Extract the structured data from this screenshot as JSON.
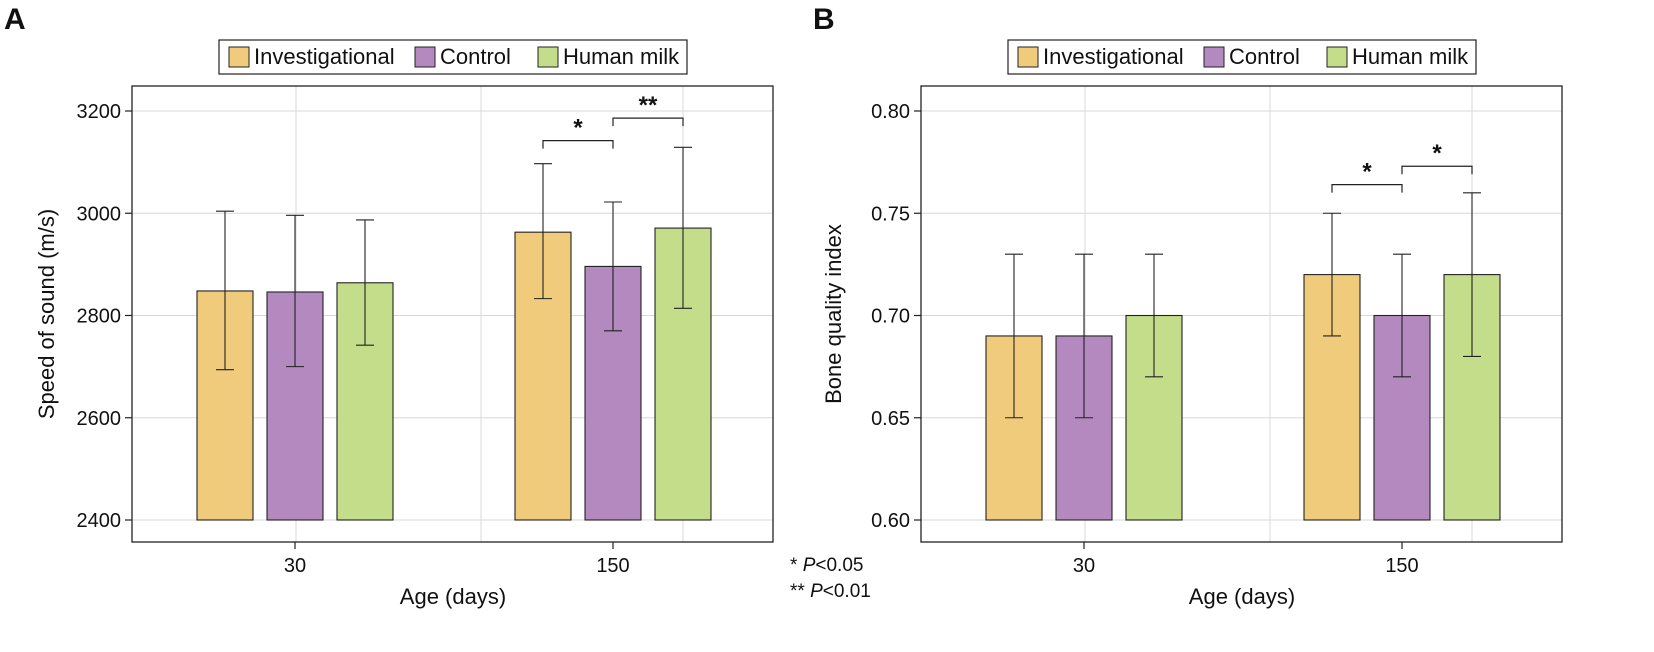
{
  "significance_note": {
    "line1_stars": "*",
    "line1_p": "P",
    "line1_rest": "<0.05",
    "line2_stars": "**",
    "line2_p": "P",
    "line2_rest": "<0.01"
  },
  "chart_data": [
    {
      "panel": "A",
      "type": "bar",
      "title": "",
      "xlabel": "Age (days)",
      "ylabel": "Speed of sound (m/s)",
      "categories": [
        "30",
        "150"
      ],
      "ylim": [
        2400,
        3230
      ],
      "yticks": [
        2400,
        2600,
        2800,
        3000,
        3200
      ],
      "ytick_labels": [
        "2400",
        "2600",
        "2800",
        "3000",
        "3200"
      ],
      "legend": [
        "Investigational",
        "Control",
        "Human milk"
      ],
      "legend_position": "top-center",
      "colors": [
        "#F1CB7C",
        "#B389BF",
        "#C3DD8A"
      ],
      "series": [
        {
          "name": "Investigational",
          "values": [
            2848,
            2963
          ],
          "err_low": [
            2694,
            2833
          ],
          "err_high": [
            3004,
            3097
          ]
        },
        {
          "name": "Control",
          "values": [
            2846,
            2896
          ],
          "err_low": [
            2700,
            2770
          ],
          "err_high": [
            2996,
            3022
          ]
        },
        {
          "name": "Human milk",
          "values": [
            2864,
            2971
          ],
          "err_low": [
            2742,
            2814
          ],
          "err_high": [
            2987,
            3129
          ]
        }
      ],
      "significance": [
        {
          "category": 1,
          "from": 0,
          "to": 1,
          "label": "*",
          "y": 3142
        },
        {
          "category": 1,
          "from": 1,
          "to": 2,
          "label": "**",
          "y": 3186
        }
      ]
    },
    {
      "panel": "B",
      "type": "bar",
      "title": "",
      "xlabel": "Age (days)",
      "ylabel": "Bone quality index",
      "categories": [
        "30",
        "150"
      ],
      "ylim": [
        0.6,
        0.807
      ],
      "yticks": [
        0.6,
        0.65,
        0.7,
        0.75,
        0.8
      ],
      "ytick_labels": [
        "0.60",
        "0.65",
        "0.70",
        "0.75",
        "0.80"
      ],
      "legend": [
        "Investigational",
        "Control",
        "Human milk"
      ],
      "legend_position": "top-center",
      "colors": [
        "#F1CB7C",
        "#B389BF",
        "#C3DD8A"
      ],
      "series": [
        {
          "name": "Investigational",
          "values": [
            0.69,
            0.72
          ],
          "err_low": [
            0.65,
            0.69
          ],
          "err_high": [
            0.73,
            0.75
          ]
        },
        {
          "name": "Control",
          "values": [
            0.69,
            0.7
          ],
          "err_low": [
            0.65,
            0.67
          ],
          "err_high": [
            0.73,
            0.73
          ]
        },
        {
          "name": "Human milk",
          "values": [
            0.7,
            0.72
          ],
          "err_low": [
            0.67,
            0.68
          ],
          "err_high": [
            0.73,
            0.76
          ]
        }
      ],
      "significance": [
        {
          "category": 1,
          "from": 0,
          "to": 1,
          "label": "*",
          "y": 0.764
        },
        {
          "category": 1,
          "from": 1,
          "to": 2,
          "label": "*",
          "y": 0.773
        }
      ]
    }
  ]
}
